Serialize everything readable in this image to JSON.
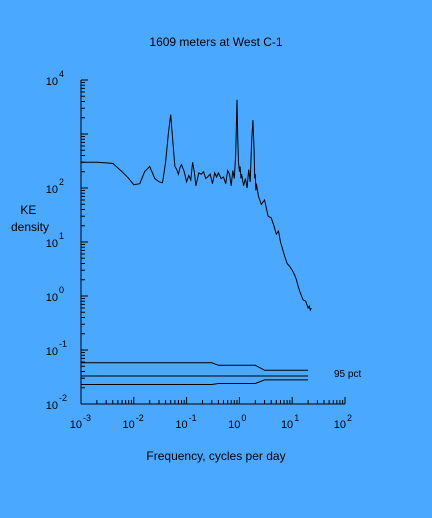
{
  "chart_data": {
    "type": "line",
    "title": "1609 meters at West C-1",
    "xlabel": "Frequency, cycles per day",
    "ylabel_lines": [
      "KE",
      "density"
    ],
    "x_scale": "log",
    "y_scale": "log",
    "xlim": [
      0.001,
      100
    ],
    "ylim": [
      0.01,
      10000
    ],
    "x_tick_exponents": [
      "-3",
      "-2",
      "-1",
      "0",
      "1",
      "2"
    ],
    "y_tick_exponents": [
      "-2",
      "-1",
      "0",
      "1",
      "2",
      "4"
    ],
    "grid": false,
    "spectrum": {
      "x": [
        0.001,
        0.002,
        0.004,
        0.006,
        0.008,
        0.01,
        0.013,
        0.016,
        0.02,
        0.025,
        0.03,
        0.035,
        0.04,
        0.045,
        0.05,
        0.055,
        0.06,
        0.065,
        0.07,
        0.075,
        0.08,
        0.09,
        0.1,
        0.11,
        0.12,
        0.13,
        0.14,
        0.15,
        0.17,
        0.19,
        0.21,
        0.23,
        0.25,
        0.28,
        0.31,
        0.34,
        0.37,
        0.4,
        0.45,
        0.5,
        0.55,
        0.6,
        0.65,
        0.7,
        0.75,
        0.8,
        0.85,
        0.9,
        0.93,
        0.96,
        1.0,
        1.03,
        1.07,
        1.1,
        1.2,
        1.3,
        1.4,
        1.5,
        1.6,
        1.7,
        1.8,
        1.9,
        1.95,
        2.0,
        2.05,
        2.1,
        2.3,
        2.6,
        3.0,
        3.5,
        4.0,
        4.5,
        5.0,
        5.5,
        6.0,
        7.0,
        8.0,
        9.0,
        10,
        11,
        12,
        13,
        14,
        15,
        16,
        18,
        20,
        21,
        22,
        23
      ],
      "y": [
        300,
        300,
        285,
        200,
        150,
        115,
        120,
        200,
        250,
        150,
        130,
        125,
        300,
        1000,
        2300,
        700,
        250,
        220,
        180,
        240,
        270,
        200,
        130,
        170,
        140,
        300,
        200,
        110,
        190,
        180,
        200,
        150,
        160,
        180,
        120,
        190,
        160,
        190,
        150,
        160,
        120,
        210,
        180,
        110,
        210,
        150,
        420,
        4300,
        900,
        300,
        200,
        250,
        150,
        180,
        110,
        150,
        100,
        220,
        130,
        700,
        1800,
        500,
        150,
        180,
        90,
        120,
        70,
        50,
        60,
        30,
        28,
        20,
        14,
        16,
        10,
        6,
        4,
        3.5,
        3,
        2.5,
        2,
        1.5,
        1.2,
        1.0,
        0.85,
        0.8,
        0.6,
        0.65,
        0.55,
        0.6
      ]
    },
    "confidence": {
      "label": "95 pct",
      "x": [
        0.001,
        0.3,
        0.4,
        2.0,
        3.0,
        20
      ],
      "upper": [
        0.058,
        0.058,
        0.052,
        0.052,
        0.042,
        0.042
      ],
      "middle": [
        0.033,
        0.033,
        0.033,
        0.033,
        0.033,
        0.033
      ],
      "lower": [
        0.023,
        0.023,
        0.024,
        0.024,
        0.028,
        0.028
      ]
    }
  }
}
